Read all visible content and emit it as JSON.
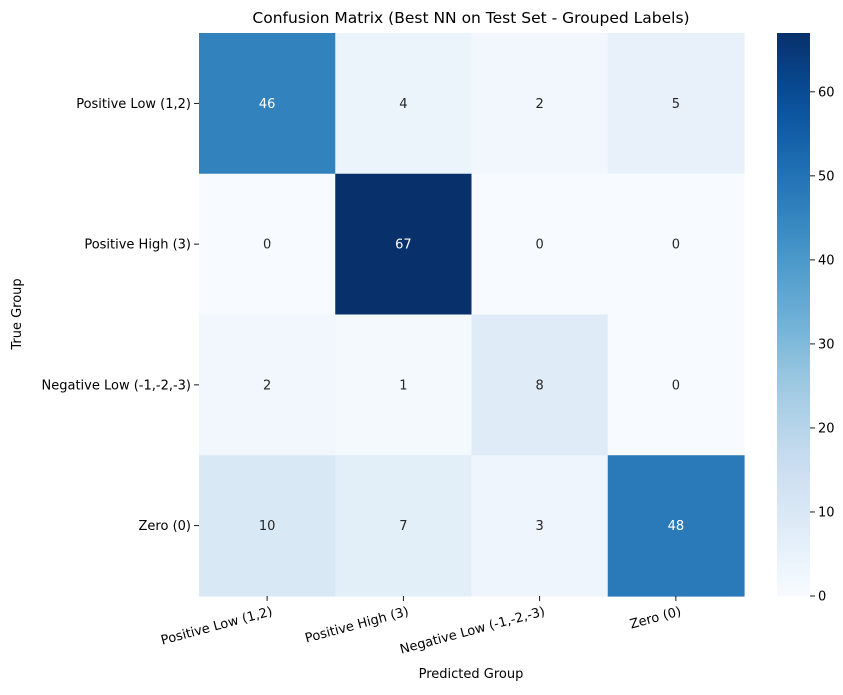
{
  "chart_data": {
    "type": "heatmap",
    "title": "Confusion Matrix (Best NN on Test Set - Grouped Labels)",
    "xlabel": "Predicted Group",
    "ylabel": "True Group",
    "x_categories": [
      "Positive Low (1,2)",
      "Positive High (3)",
      "Negative Low (-1,-2,-3)",
      "Zero (0)"
    ],
    "y_categories": [
      "Positive Low (1,2)",
      "Positive High (3)",
      "Negative Low (-1,-2,-3)",
      "Zero (0)"
    ],
    "values": [
      [
        46,
        4,
        2,
        5
      ],
      [
        0,
        67,
        0,
        0
      ],
      [
        2,
        1,
        8,
        0
      ],
      [
        10,
        7,
        3,
        48
      ]
    ],
    "colorbar": {
      "vmin": 0,
      "vmax": 67,
      "ticks": [
        0,
        10,
        20,
        30,
        40,
        50,
        60
      ],
      "colormap": "Blues"
    },
    "annotations": true,
    "grid": false,
    "legend": "colorbar-right",
    "colors": {
      "low": "#f7fbff",
      "high": "#08306b",
      "text_dark": "#262626",
      "text_light": "#ffffff"
    }
  }
}
